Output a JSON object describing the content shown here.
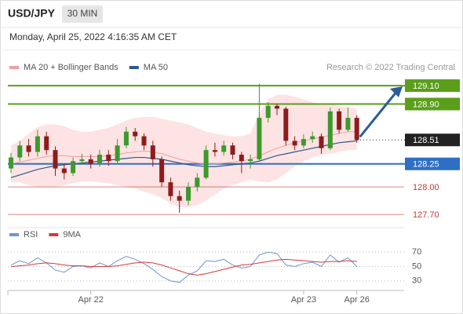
{
  "header": {
    "symbol": "USD/JPY",
    "interval": "30 MIN",
    "timestamp": "Monday, April 25, 2022 4:16:35 AM CET"
  },
  "chart_data": [
    {
      "type": "candlestick",
      "source": "Research © 2022 Trading Central",
      "up_color": "#3c9a2c",
      "down_color": "#8e1c1c",
      "candles": [
        {
          "open": 128.2,
          "high": 128.37,
          "low": 128.15,
          "close": 128.32
        },
        {
          "open": 128.32,
          "high": 128.5,
          "low": 128.28,
          "close": 128.45
        },
        {
          "open": 128.45,
          "high": 128.52,
          "low": 128.33,
          "close": 128.38
        },
        {
          "open": 128.38,
          "high": 128.62,
          "low": 128.33,
          "close": 128.55
        },
        {
          "open": 128.55,
          "high": 128.6,
          "low": 128.35,
          "close": 128.4
        },
        {
          "open": 128.4,
          "high": 128.44,
          "low": 128.12,
          "close": 128.2
        },
        {
          "open": 128.2,
          "high": 128.25,
          "low": 128.08,
          "close": 128.15
        },
        {
          "open": 128.15,
          "high": 128.32,
          "low": 128.12,
          "close": 128.28
        },
        {
          "open": 128.28,
          "high": 128.36,
          "low": 128.24,
          "close": 128.3
        },
        {
          "open": 128.3,
          "high": 128.35,
          "low": 128.2,
          "close": 128.25
        },
        {
          "open": 128.25,
          "high": 128.4,
          "low": 128.22,
          "close": 128.35
        },
        {
          "open": 128.35,
          "high": 128.4,
          "low": 128.23,
          "close": 128.28
        },
        {
          "open": 128.28,
          "high": 128.52,
          "low": 128.25,
          "close": 128.45
        },
        {
          "open": 128.45,
          "high": 128.65,
          "low": 128.42,
          "close": 128.6
        },
        {
          "open": 128.6,
          "high": 128.64,
          "low": 128.5,
          "close": 128.55
        },
        {
          "open": 128.55,
          "high": 128.58,
          "low": 128.4,
          "close": 128.45
        },
        {
          "open": 128.45,
          "high": 128.5,
          "low": 128.22,
          "close": 128.3
        },
        {
          "open": 128.3,
          "high": 128.33,
          "low": 128.0,
          "close": 128.05
        },
        {
          "open": 128.05,
          "high": 128.1,
          "low": 127.85,
          "close": 127.9
        },
        {
          "open": 127.9,
          "high": 127.96,
          "low": 127.72,
          "close": 127.85
        },
        {
          "open": 127.85,
          "high": 128.05,
          "low": 127.8,
          "close": 128.0
        },
        {
          "open": 128.0,
          "high": 128.15,
          "low": 127.95,
          "close": 128.1
        },
        {
          "open": 128.1,
          "high": 128.45,
          "low": 128.08,
          "close": 128.4
        },
        {
          "open": 128.4,
          "high": 128.48,
          "low": 128.33,
          "close": 128.38
        },
        {
          "open": 128.38,
          "high": 128.5,
          "low": 128.34,
          "close": 128.45
        },
        {
          "open": 128.45,
          "high": 128.48,
          "low": 128.3,
          "close": 128.35
        },
        {
          "open": 128.35,
          "high": 128.38,
          "low": 128.15,
          "close": 128.28
        },
        {
          "open": 128.28,
          "high": 128.35,
          "low": 128.2,
          "close": 128.3
        },
        {
          "open": 128.3,
          "high": 129.12,
          "low": 128.28,
          "close": 128.75
        },
        {
          "open": 128.75,
          "high": 128.92,
          "low": 128.7,
          "close": 128.88
        },
        {
          "open": 128.88,
          "high": 128.9,
          "low": 128.78,
          "close": 128.85
        },
        {
          "open": 128.85,
          "high": 128.87,
          "low": 128.45,
          "close": 128.5
        },
        {
          "open": 128.5,
          "high": 128.55,
          "low": 128.4,
          "close": 128.45
        },
        {
          "open": 128.45,
          "high": 128.57,
          "low": 128.42,
          "close": 128.52
        },
        {
          "open": 128.52,
          "high": 128.6,
          "low": 128.48,
          "close": 128.55
        },
        {
          "open": 128.55,
          "high": 128.58,
          "low": 128.36,
          "close": 128.42
        },
        {
          "open": 128.42,
          "high": 128.86,
          "low": 128.4,
          "close": 128.82
        },
        {
          "open": 128.82,
          "high": 128.85,
          "low": 128.58,
          "close": 128.62
        },
        {
          "open": 128.62,
          "high": 128.86,
          "low": 128.6,
          "close": 128.75
        },
        {
          "open": 128.75,
          "high": 128.78,
          "low": 128.48,
          "close": 128.51
        }
      ],
      "series": [
        {
          "name": "MA 20 + Bollinger Bands",
          "color": "#f0a0a0",
          "band_color": "#fde3e3",
          "values": [
            128.25,
            128.27,
            128.29,
            128.31,
            128.33,
            128.34,
            128.34,
            128.33,
            128.33,
            128.33,
            128.33,
            128.34,
            128.35,
            128.37,
            128.38,
            128.39,
            128.38,
            128.36,
            128.33,
            128.3,
            128.28,
            128.26,
            128.25,
            128.25,
            128.26,
            128.27,
            128.28,
            128.3,
            128.34,
            128.38,
            128.42,
            128.45,
            128.48,
            128.5,
            128.52,
            128.54,
            128.56,
            128.58,
            128.6,
            128.6
          ],
          "upper": [
            128.45,
            128.5,
            128.58,
            128.65,
            128.68,
            128.68,
            128.66,
            128.62,
            128.6,
            128.6,
            128.62,
            128.64,
            128.68,
            128.72,
            128.75,
            128.76,
            128.76,
            128.74,
            128.72,
            128.7,
            128.68,
            128.64,
            128.6,
            128.58,
            128.56,
            128.55,
            128.55,
            128.58,
            128.8,
            128.95,
            129.0,
            129.0,
            128.98,
            128.95,
            128.92,
            128.9,
            128.9,
            128.88,
            128.87,
            128.85
          ],
          "lower": [
            128.05,
            128.05,
            128.02,
            128.0,
            128.0,
            128.0,
            128.02,
            128.04,
            128.06,
            128.06,
            128.05,
            128.04,
            128.02,
            128.0,
            127.98,
            127.95,
            127.92,
            127.88,
            127.82,
            127.78,
            127.78,
            127.8,
            127.85,
            127.92,
            127.98,
            128.02,
            128.05,
            128.08,
            128.06,
            128.05,
            128.08,
            128.15,
            128.22,
            128.28,
            128.32,
            128.35,
            128.36,
            128.38,
            128.4,
            128.4
          ]
        },
        {
          "name": "MA 50",
          "color": "#2c5a8c",
          "values": [
            128.1,
            128.13,
            128.16,
            128.19,
            128.21,
            128.23,
            128.24,
            128.25,
            128.26,
            128.27,
            128.28,
            128.29,
            128.3,
            128.31,
            128.32,
            128.32,
            128.31,
            128.3,
            128.28,
            128.26,
            128.24,
            128.23,
            128.22,
            128.22,
            128.23,
            128.24,
            128.25,
            128.26,
            128.28,
            128.31,
            128.34,
            128.36,
            128.38,
            128.4,
            128.42,
            128.44,
            128.46,
            128.48,
            128.49,
            128.5
          ]
        }
      ],
      "levels": [
        {
          "value": 129.1,
          "label": "129.10",
          "color": "#5a9e1a",
          "style": "box",
          "line": "solid"
        },
        {
          "value": 128.9,
          "label": "128.90",
          "color": "#5a9e1a",
          "style": "box",
          "line": "solid"
        },
        {
          "value": 128.51,
          "label": "128.51",
          "color": "#222222",
          "style": "box",
          "line": "dotted"
        },
        {
          "value": 128.25,
          "label": "128.25",
          "color": "#2e6fc4",
          "style": "box",
          "line": "solid"
        },
        {
          "value": 128.0,
          "label": "128.00",
          "color": "#c43a3a",
          "style": "text",
          "line": "thin"
        },
        {
          "value": 127.7,
          "label": "127.70",
          "color": "#c43a3a",
          "style": "text",
          "line": "thin"
        }
      ],
      "ylim": [
        127.6,
        129.22
      ],
      "xticks": [
        {
          "value": 9,
          "label": "Apr 22"
        },
        {
          "value": 33,
          "label": "Apr 23"
        },
        {
          "value": 39,
          "label": "Apr 26"
        }
      ]
    },
    {
      "type": "line",
      "ylim": [
        20,
        80
      ],
      "yticks": [
        70,
        50,
        30
      ],
      "series": [
        {
          "name": "RSI",
          "color": "#6b95d8",
          "values": [
            52,
            58,
            54,
            62,
            55,
            45,
            42,
            50,
            51,
            48,
            55,
            50,
            58,
            64,
            60,
            54,
            46,
            36,
            30,
            28,
            38,
            44,
            58,
            57,
            60,
            52,
            48,
            50,
            66,
            70,
            68,
            52,
            50,
            54,
            56,
            50,
            66,
            56,
            62,
            50
          ]
        },
        {
          "name": "9MA",
          "color": "#d43a3a",
          "values": [
            50,
            51,
            52,
            54,
            55,
            54,
            52,
            51,
            51,
            50,
            50,
            50,
            51,
            53,
            55,
            56,
            55,
            52,
            48,
            44,
            40,
            38,
            40,
            43,
            46,
            49,
            52,
            53,
            55,
            57,
            59,
            60,
            59,
            58,
            57,
            56,
            57,
            57,
            58,
            57
          ]
        }
      ]
    }
  ]
}
